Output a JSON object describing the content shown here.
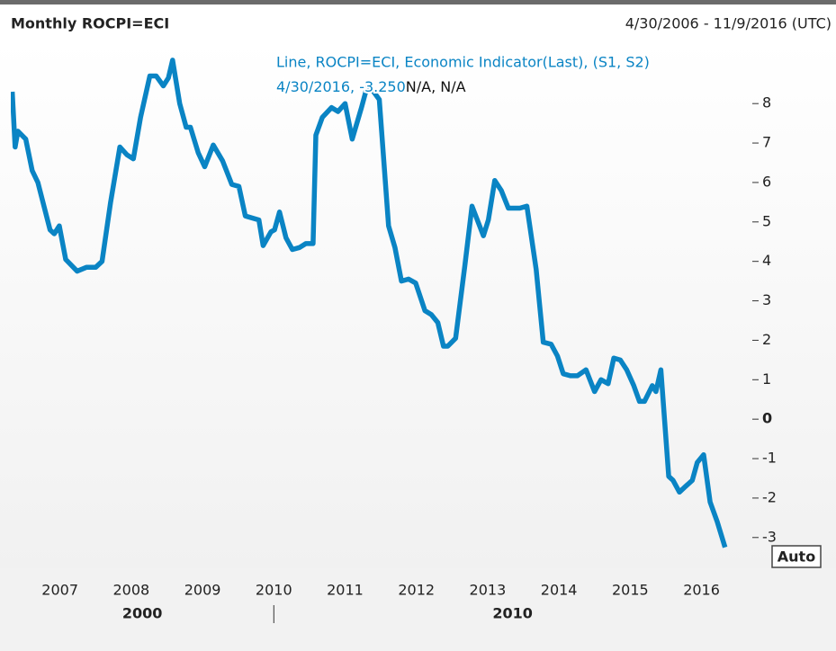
{
  "chart_data": {
    "type": "line",
    "title": "Monthly ROCPI=ECI",
    "date_range": "4/30/2006 - 11/9/2016 (UTC)",
    "crosshair_text": "4/30/2016, -3.250",
    "crosshair_extra": "N/A, N/A",
    "auto_button": "Auto",
    "x": [
      2006.33,
      2006.37,
      2006.41,
      2006.52,
      2006.61,
      2006.69,
      2006.86,
      2006.92,
      2006.99,
      2007.08,
      2007.24,
      2007.37,
      2007.5,
      2007.59,
      2007.71,
      2007.84,
      2007.94,
      2008.03,
      2008.13,
      2008.26,
      2008.35,
      2008.45,
      2008.52,
      2008.58,
      2008.68,
      2008.77,
      2008.83,
      2008.94,
      2009.03,
      2009.15,
      2009.28,
      2009.41,
      2009.51,
      2009.6,
      2009.79,
      2009.85,
      2009.96,
      2010.01,
      2010.08,
      2010.17,
      2010.26,
      2010.36,
      2010.45,
      2010.55,
      2010.59,
      2010.68,
      2010.81,
      2010.9,
      2011.0,
      2011.1,
      2011.23,
      2011.32,
      2011.48,
      2011.61,
      2011.7,
      2011.79,
      2011.89,
      2011.99,
      2012.12,
      2012.21,
      2012.3,
      2012.38,
      2012.44,
      2012.55,
      2012.68,
      2012.78,
      2012.94,
      2013.01,
      2013.1,
      2013.19,
      2013.29,
      2013.45,
      2013.55,
      2013.68,
      2013.78,
      2013.89,
      2013.98,
      2014.06,
      2014.16,
      2014.26,
      2014.38,
      2014.5,
      2014.59,
      2014.69,
      2014.77,
      2014.86,
      2014.95,
      2015.05,
      2015.13,
      2015.2,
      2015.31,
      2015.36,
      2015.43,
      2015.54,
      2015.6,
      2015.69,
      2015.78,
      2015.87,
      2015.94,
      2016.03,
      2016.12,
      2016.22,
      2016.33
    ],
    "series": [
      {
        "name": "Line, ROCPI=ECI, Economic Indicator(Last), (S1, S2)",
        "color": "#0a84c4",
        "values": [
          8.3,
          6.9,
          7.3,
          7.1,
          6.3,
          6.0,
          4.8,
          4.7,
          4.9,
          4.05,
          3.75,
          3.85,
          3.85,
          4.0,
          5.5,
          6.9,
          6.7,
          6.6,
          7.65,
          8.7,
          8.7,
          8.45,
          8.65,
          9.1,
          8.0,
          7.4,
          7.4,
          6.75,
          6.4,
          6.95,
          6.55,
          5.95,
          5.9,
          5.15,
          5.05,
          4.4,
          4.75,
          4.8,
          5.25,
          4.6,
          4.3,
          4.35,
          4.45,
          4.45,
          7.2,
          7.65,
          7.9,
          7.8,
          8.0,
          7.1,
          7.9,
          8.5,
          8.1,
          4.9,
          4.35,
          3.5,
          3.55,
          3.45,
          2.75,
          2.65,
          2.45,
          1.85,
          1.85,
          2.05,
          3.9,
          5.4,
          4.65,
          5.05,
          6.05,
          5.8,
          5.35,
          5.35,
          5.4,
          3.8,
          1.95,
          1.9,
          1.6,
          1.15,
          1.1,
          1.1,
          1.25,
          0.7,
          1.0,
          0.9,
          1.55,
          1.5,
          1.25,
          0.85,
          0.45,
          0.45,
          0.85,
          0.7,
          1.25,
          -1.45,
          -1.55,
          -1.85,
          -1.7,
          -1.55,
          -1.1,
          -0.9,
          -2.1,
          -2.6,
          -3.25
        ]
      }
    ],
    "xlim": [
      2006.31,
      2016.7
    ],
    "xticks": [
      2007,
      2008,
      2009,
      2010,
      2011,
      2012,
      2013,
      2014,
      2015,
      2016
    ],
    "x_decades": [
      {
        "value": 2000,
        "label": "2000"
      },
      {
        "value": 2010,
        "label": "2010"
      }
    ],
    "ylim": [
      -3.78,
      9.6
    ],
    "yticks": [
      -3,
      -2,
      -1,
      0,
      1,
      2,
      3,
      4,
      5,
      6,
      7,
      8
    ],
    "bold_zero": true,
    "grid": false
  }
}
